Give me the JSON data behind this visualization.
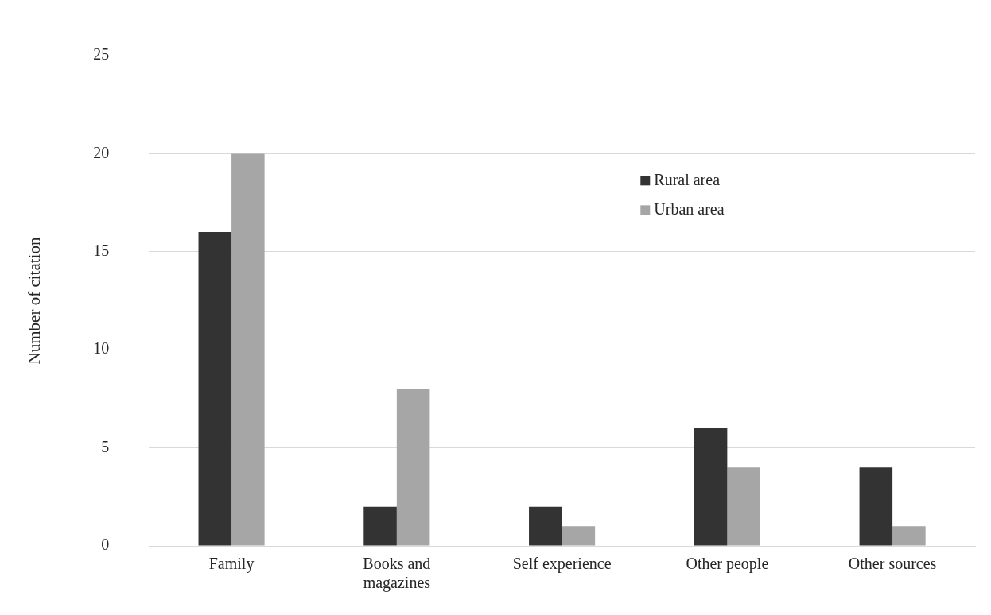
{
  "chart_data": {
    "type": "bar",
    "ylabel": "Number of citation",
    "categories": [
      "Family",
      "Books and magazines",
      "Self experience",
      "Other people",
      "Other sources"
    ],
    "series": [
      {
        "name": "Rural area",
        "color": "#333333",
        "values": [
          16,
          2,
          2,
          6,
          4
        ]
      },
      {
        "name": "Urban area",
        "color": "#a6a6a6",
        "values": [
          20,
          8,
          1,
          4,
          1
        ]
      }
    ],
    "ylim": [
      0,
      25
    ],
    "yticks": [
      0,
      5,
      10,
      15,
      20,
      25
    ],
    "grid": "y",
    "legend": "top right"
  }
}
